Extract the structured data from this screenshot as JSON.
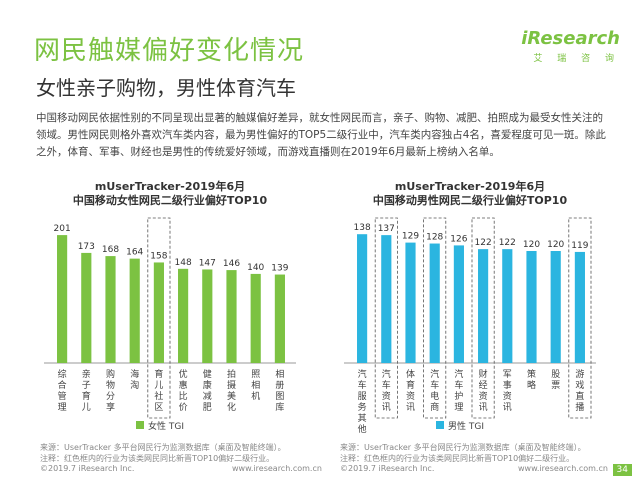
{
  "header": {
    "title": "网民触媒偏好变化情况",
    "subtitle": "女性亲子购物，男性体育汽车",
    "brand": "iResearch",
    "brand_cn": "艾 瑞 咨 询"
  },
  "intro": "中国移动网民依据性别的不同呈现出显著的触媒偏好差异，就女性网民而言，亲子、购物、减肥、拍照成为最受女性关注的领域。男性网民则格外喜欢汽车类内容，最为男性偏好的TOP5二级行业中，汽车类内容独占4名，喜爱程度可见一斑。除此之外，体育、军事、财经也是男性的传统爱好领域，而游戏直播则在2019年6月最新上榜纳入名单。",
  "chart_data": [
    {
      "type": "bar",
      "title_line1": "mUserTracker-2019年6月",
      "title_line2": "中国移动女性网民二级行业偏好TOP10",
      "categories": [
        "综合管理",
        "亲子育儿",
        "购物分享",
        "海淘",
        "育儿社区",
        "优惠比价",
        "健康减肥",
        "拍摄美化",
        "照相机",
        "相册图库"
      ],
      "values": [
        201,
        173,
        168,
        164,
        158,
        148,
        147,
        146,
        140,
        139
      ],
      "highlight_index": 4,
      "legend": "女性 TGI",
      "color": "#7cc242",
      "ylim": [
        0,
        220
      ]
    },
    {
      "type": "bar",
      "title_line1": "mUserTracker-2019年6月",
      "title_line2": "中国移动男性网民二级行业偏好TOP10",
      "categories": [
        "汽车服务其他",
        "汽车资讯",
        "体育资讯",
        "汽车电商",
        "汽车护理",
        "财经资讯",
        "军事资讯",
        "策略",
        "股票",
        "游戏直播"
      ],
      "values": [
        138,
        137,
        129,
        128,
        126,
        122,
        122,
        120,
        120,
        119
      ],
      "highlight_indices": [
        1,
        3,
        5,
        9
      ],
      "legend": "男性 TGI",
      "color": "#2bb5e0",
      "ylim": [
        0,
        150
      ]
    }
  ],
  "footer": {
    "source_left_1": "来源：UserTracker 多平台网民行为监测数据库（桌面及智能终端）。",
    "source_left_2": "注释：红色框内的行业为该类网民同比新晋TOP10偏好二级行业。",
    "source_right_1": "来源：UserTracker 多平台网民行为监测数据库（桌面及智能终端）。",
    "source_right_2": "注释：红色框内的行业为该类网民同比新晋TOP10偏好二级行业。",
    "copyright_l": "©2019.7 iResearch Inc.",
    "url_l": "www.iresearch.com.cn",
    "copyright_r": "©2019.7 iResearch Inc.",
    "url_r": "www.iresearch.com.cn",
    "page": "34"
  }
}
